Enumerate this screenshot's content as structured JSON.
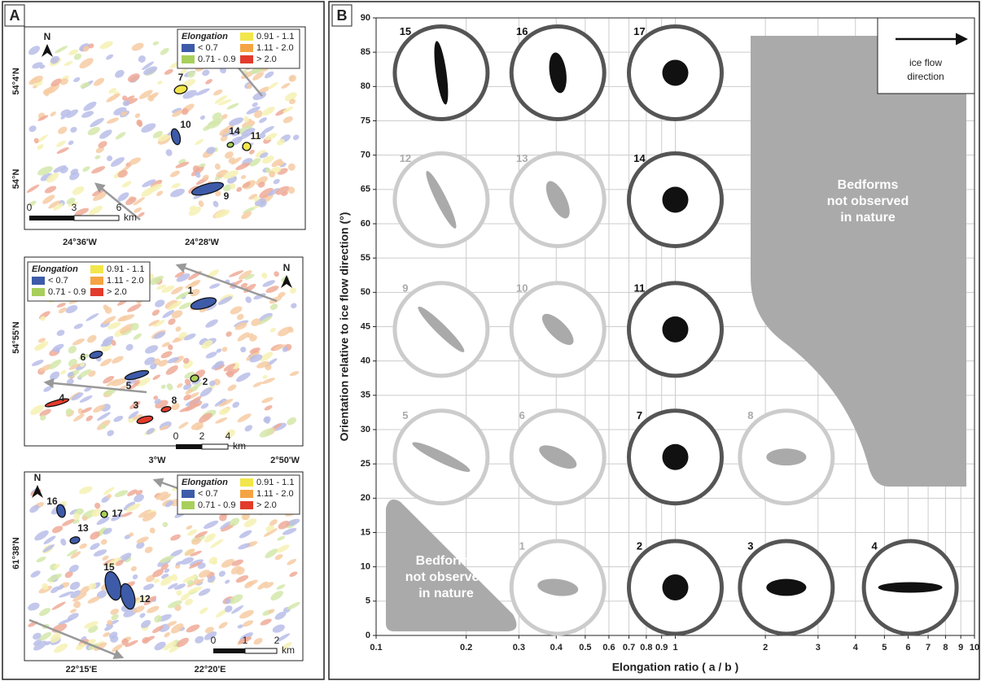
{
  "panel_a": {
    "label": "A",
    "legend": {
      "title": "Elongation",
      "items": [
        "< 0.7",
        "0.71 - 0.9",
        "0.91 - 1.1",
        "1.11 - 2.0",
        "> 2.0"
      ],
      "colors": [
        "#3d5ba9",
        "#a8cf5b",
        "#f2e64b",
        "#f5a443",
        "#e23b2b"
      ]
    },
    "maps": [
      {
        "north": "N",
        "lat_labels": [
          "54°4'N",
          "54°N"
        ],
        "lon_labels": [
          "24°36'W",
          "24°28'W"
        ],
        "scale_labels": [
          "0",
          "3",
          "6"
        ],
        "scale_unit": "km",
        "bedforms": [
          "7",
          "10",
          "14",
          "11",
          "9"
        ]
      },
      {
        "north": "N",
        "lat_labels": [
          "54°55'N"
        ],
        "lon_labels": [
          "3°W",
          "2°50'W"
        ],
        "scale_labels": [
          "0",
          "2",
          "4"
        ],
        "scale_unit": "km",
        "bedforms": [
          "1",
          "6",
          "5",
          "2",
          "4",
          "3",
          "8"
        ]
      },
      {
        "north": "N",
        "lat_labels": [
          "61°38'N"
        ],
        "lon_labels": [
          "22°15'E",
          "22°20'E"
        ],
        "scale_labels": [
          "0",
          "1",
          "2"
        ],
        "scale_unit": "km",
        "bedforms": [
          "16",
          "13",
          "17",
          "15",
          "12"
        ]
      }
    ]
  },
  "chart_data": {
    "type": "scatter",
    "label": "B",
    "xlabel": "Elongation ratio ( a / b )",
    "ylabel": "Orientation relative to ice flow direction (°)",
    "xscale": "log",
    "xlim": [
      0.1,
      10
    ],
    "xticks": [
      0.1,
      0.2,
      0.3,
      0.4,
      0.5,
      0.6,
      0.7,
      0.8,
      0.9,
      1,
      2,
      3,
      4,
      5,
      6,
      7,
      8,
      9,
      10
    ],
    "ylim": [
      0,
      90
    ],
    "yticks": [
      0,
      5,
      10,
      15,
      20,
      25,
      30,
      35,
      40,
      45,
      50,
      55,
      60,
      65,
      70,
      75,
      80,
      85,
      90
    ],
    "grid": true,
    "point_labels": [
      "15",
      "16",
      "17",
      "12",
      "13",
      "14",
      "9",
      "10",
      "11",
      "5",
      "6",
      "7",
      "8",
      "1",
      "2",
      "3",
      "4"
    ],
    "x": [
      0.165,
      0.405,
      1,
      0.165,
      0.405,
      1,
      0.165,
      0.405,
      1,
      0.165,
      0.405,
      1,
      2.35,
      0.405,
      1,
      2.35,
      6.1
    ],
    "values": [
      82,
      82,
      82,
      63.5,
      63.5,
      63.5,
      44.6,
      44.6,
      44.6,
      26,
      26,
      26,
      26,
      7,
      7,
      7,
      7
    ],
    "colors": [
      "#111",
      "#111",
      "#111",
      "#aaa",
      "#aaa",
      "#111",
      "#aaa",
      "#aaa",
      "#111",
      "#aaa",
      "#aaa",
      "#111",
      "#aaa",
      "#aaa",
      "#111",
      "#111",
      "#111"
    ],
    "annotations": [
      [
        "Bedforms",
        "not observed",
        "in nature"
      ],
      [
        "Bedforms",
        "not observed",
        "in nature"
      ]
    ],
    "ice_flow": [
      "ice flow",
      "direction"
    ]
  }
}
